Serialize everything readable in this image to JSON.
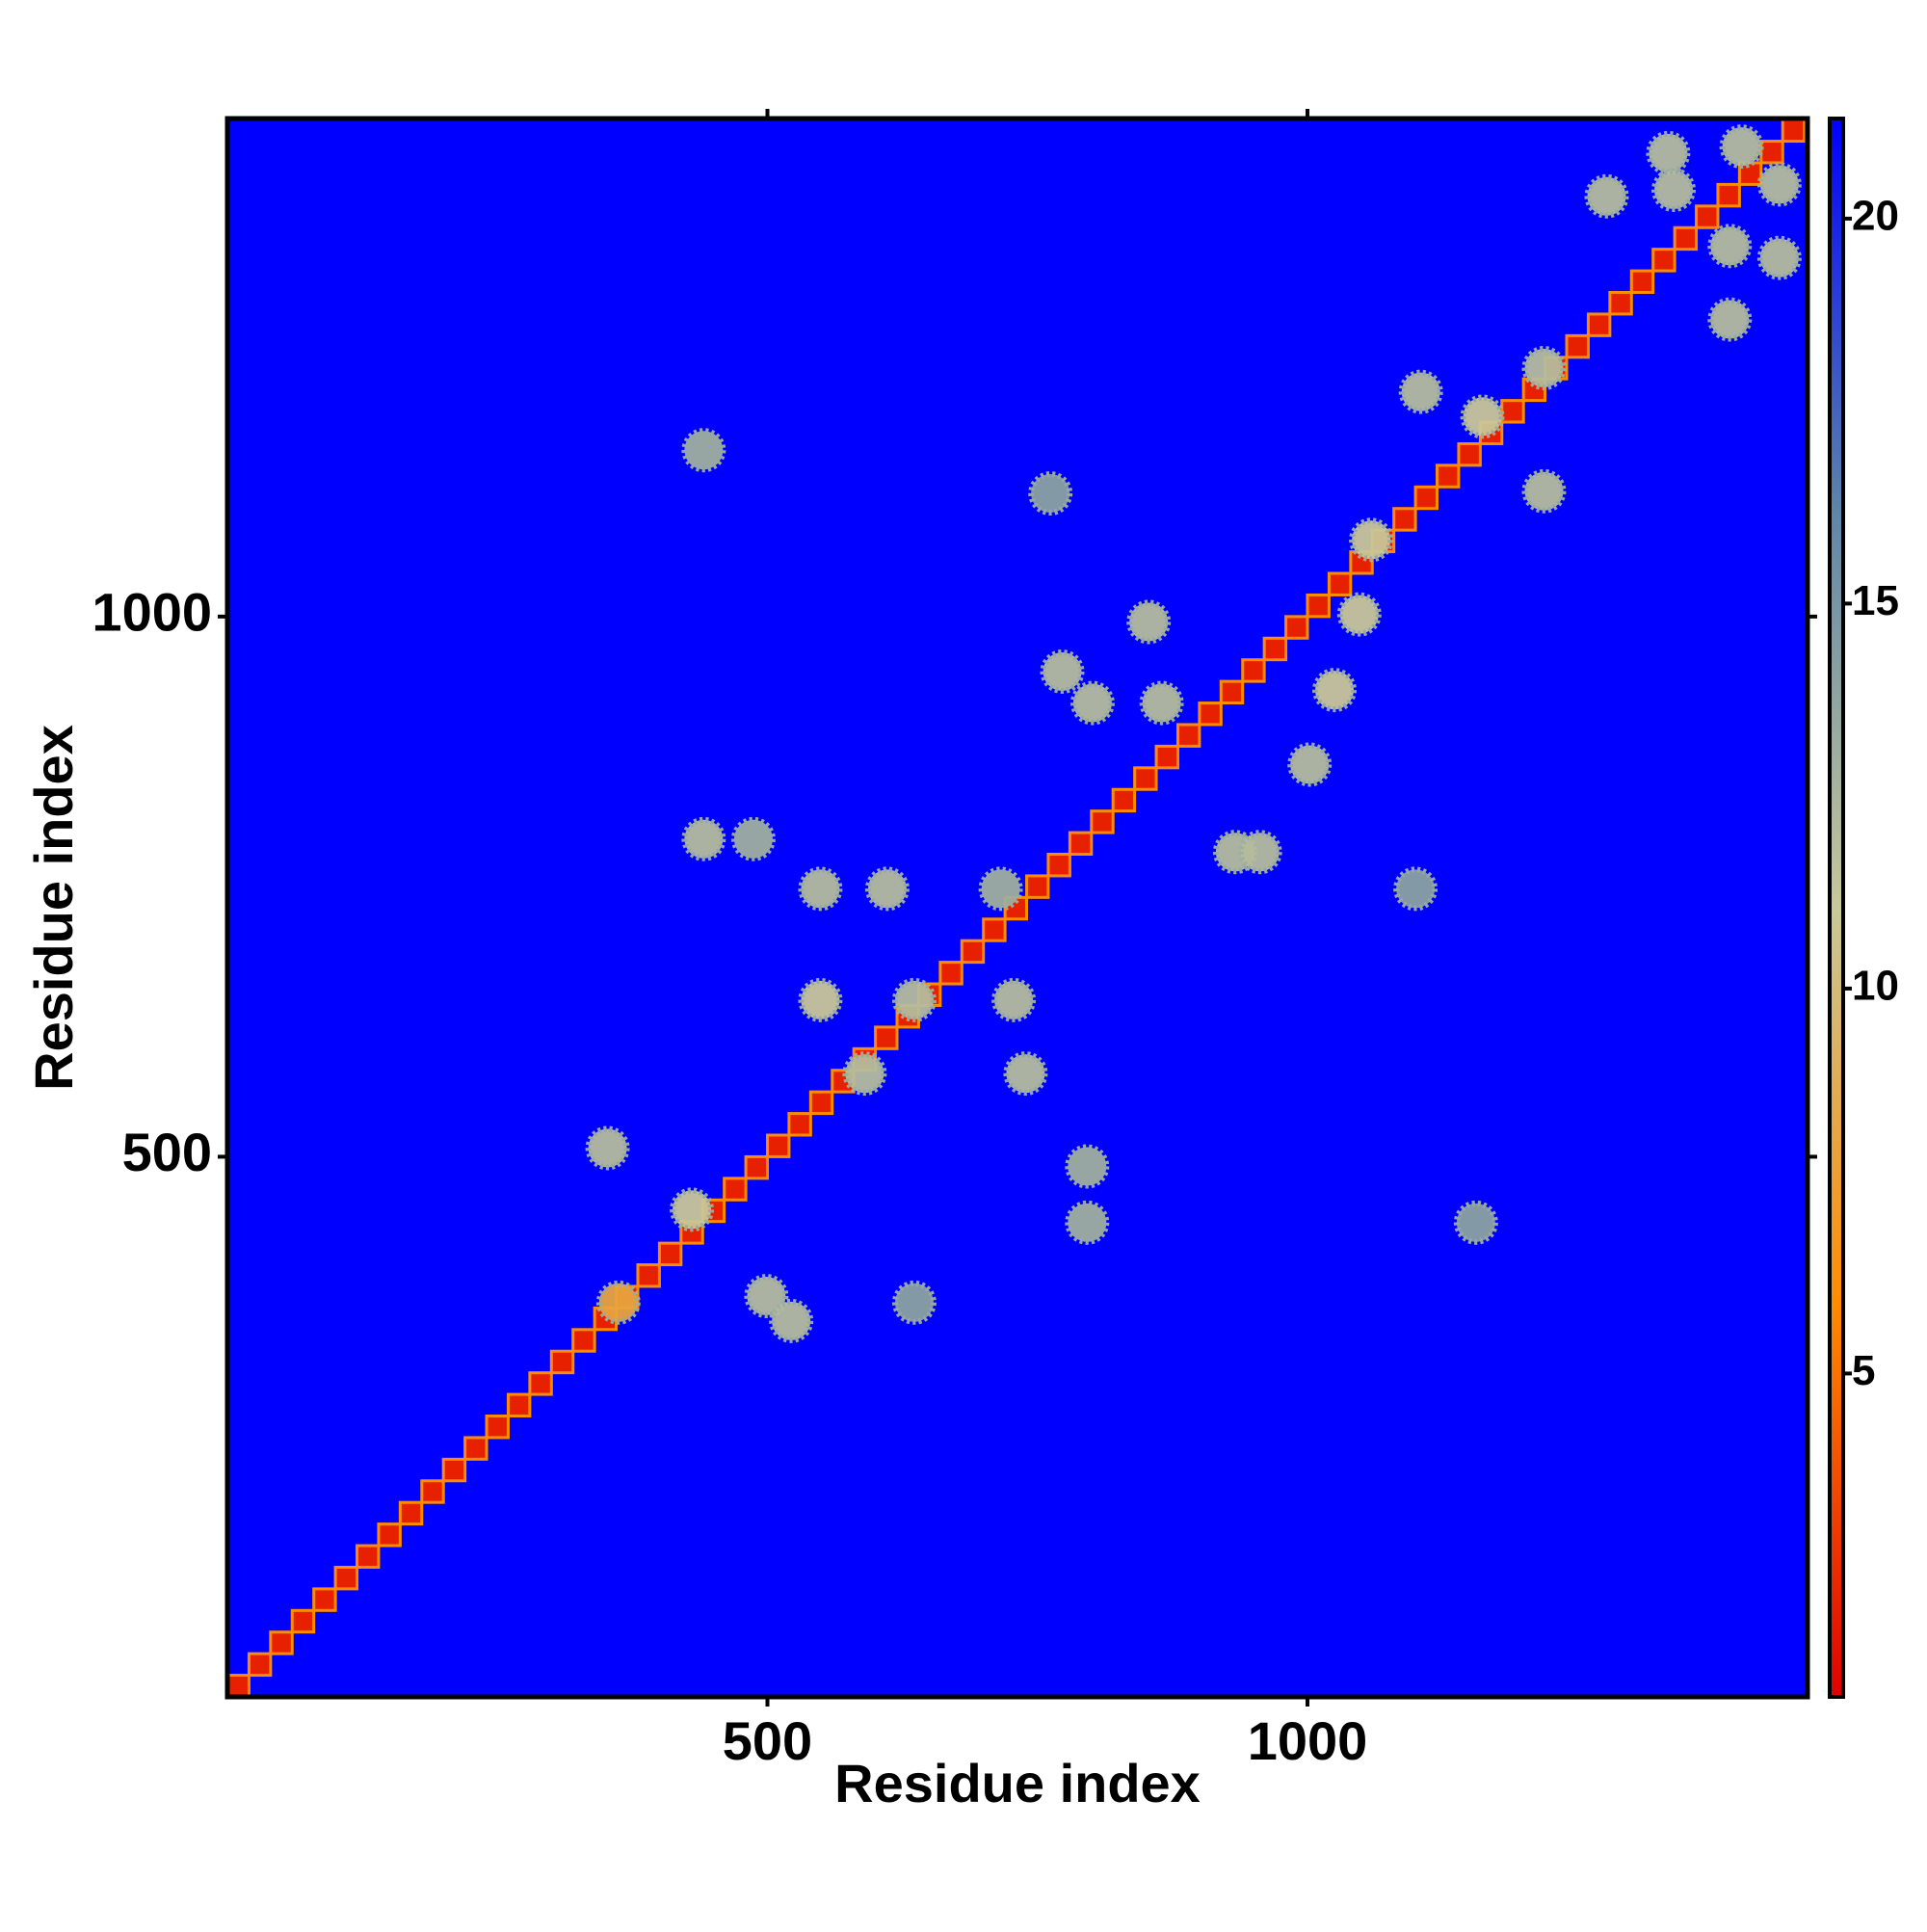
{
  "chart_data": {
    "type": "heatmap",
    "x_label": "Residue index",
    "y_label": "Residue index",
    "xlim": [
      0,
      1463
    ],
    "ylim": [
      0,
      1461
    ],
    "xticks": [
      500,
      1000
    ],
    "yticks": [
      500,
      1000
    ],
    "clim": [
      0.8,
      21.3
    ],
    "cticks": [
      5,
      10,
      15,
      20
    ],
    "colors": [
      "#e00000",
      "#ff8c00",
      "#c8c89a",
      "#5f86a8",
      "#0000ff"
    ],
    "series": [
      {
        "x": [
          10,
          30,
          50,
          70,
          90,
          110,
          130,
          150,
          170,
          190,
          210,
          230,
          250,
          270,
          290,
          310,
          330,
          350,
          370,
          390,
          410,
          430,
          450,
          470,
          490,
          510,
          530,
          550,
          570,
          590,
          610,
          630,
          650,
          670,
          690,
          710,
          730,
          750,
          770,
          790,
          810,
          830,
          850,
          870,
          890,
          910,
          930,
          950,
          970,
          990,
          1010,
          1030,
          1050,
          1070,
          1090,
          1110,
          1130,
          1150,
          1170,
          1190,
          1210,
          1230,
          1250,
          1270,
          1290,
          1310,
          1330,
          1350,
          1370,
          1390,
          1410,
          1430,
          1450
        ],
        "y": [
          10,
          30,
          50,
          70,
          90,
          110,
          130,
          150,
          170,
          190,
          210,
          230,
          250,
          270,
          290,
          310,
          330,
          350,
          370,
          390,
          410,
          430,
          450,
          470,
          490,
          510,
          530,
          550,
          570,
          590,
          610,
          630,
          650,
          670,
          690,
          710,
          730,
          750,
          770,
          790,
          810,
          830,
          850,
          870,
          890,
          910,
          930,
          950,
          970,
          990,
          1010,
          1030,
          1050,
          1070,
          1090,
          1110,
          1130,
          1150,
          1170,
          1190,
          1210,
          1230,
          1250,
          1270,
          1290,
          1310,
          1330,
          1350,
          1370,
          1390,
          1410,
          1430,
          1450
        ],
        "values": [
          2,
          2,
          2,
          2,
          2,
          2,
          2,
          2,
          2,
          2,
          2,
          2,
          2,
          2,
          2,
          2,
          2,
          2,
          2,
          2,
          2,
          2,
          2,
          2,
          2,
          2,
          2,
          2,
          2,
          2,
          2,
          2,
          2,
          2,
          2,
          2,
          2,
          2,
          2,
          2,
          2,
          2,
          2,
          2,
          2,
          2,
          2,
          2,
          2,
          2,
          2,
          2,
          2,
          2,
          2,
          2,
          2,
          2,
          2,
          2,
          2,
          2,
          2,
          2,
          2,
          2,
          2,
          2,
          2,
          2,
          2,
          2,
          2
        ]
      },
      {
        "x": [
          362,
          352,
          430,
          499,
          522,
          636,
          549,
          611,
          549,
          636,
          728,
          739,
          590,
          716,
          441,
          487,
          773,
          801,
          853,
          865,
          933,
          956,
          1002,
          1025,
          1048,
          1059,
          1105,
          1162,
          1219,
          1219,
          1277,
          1334,
          1339,
          1391,
          1437,
          1437,
          1391,
          1402,
          796,
          796,
          1100,
          1156,
          441,
          762
        ],
        "y": [
          365,
          508,
          451,
          371,
          348,
          365,
          748,
          748,
          645,
          645,
          645,
          577,
          577,
          748,
          794,
          794,
          949,
          920,
          995,
          920,
          782,
          782,
          863,
          932,
          1002,
          1071,
          1208,
          1185,
          1116,
          1230,
          1389,
          1429,
          1395,
          1343,
          1332,
          1400,
          1275,
          1435,
          439,
          491,
          748,
          439,
          1154,
          1114
        ],
        "values": [
          8,
          12,
          11,
          12,
          12,
          14,
          12,
          12,
          11,
          12,
          12,
          12,
          12,
          13,
          12,
          13,
          12,
          12,
          12,
          12,
          12,
          12,
          12,
          11,
          11,
          11,
          12,
          11,
          12,
          12,
          12,
          12,
          12,
          12,
          12,
          12,
          12,
          12,
          13,
          13,
          14,
          14,
          13,
          14
        ]
      }
    ]
  }
}
